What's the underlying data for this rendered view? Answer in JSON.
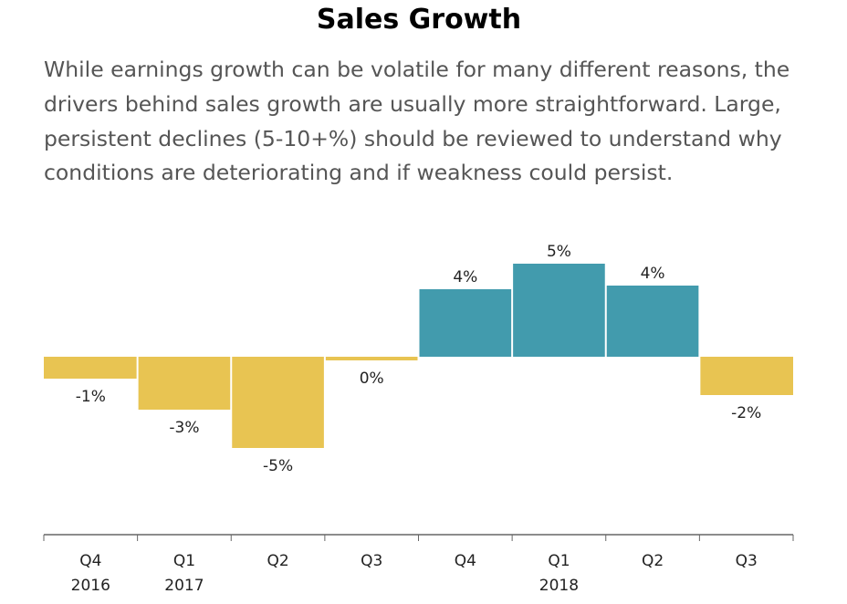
{
  "colors": {
    "positive": "#429bad",
    "negative": "#e8c452",
    "axis": "#666666",
    "label": "#222222",
    "title": "#000000",
    "description": "#555555"
  },
  "chart_data": {
    "type": "bar",
    "title": "Sales Growth",
    "subtitle": "While earnings growth can be volatile for many different reasons, the drivers behind sales growth are usually more straightforward. Large, persistent declines (5-10+%) should be reviewed to understand why conditions are deteriorating and if weakness could persist.",
    "categories": [
      "Q4 2016",
      "Q1 2017",
      "Q2 2017",
      "Q3 2017",
      "Q4 2017",
      "Q1 2018",
      "Q2 2018",
      "Q3 2018"
    ],
    "quarter_labels": [
      "Q4",
      "Q1",
      "Q2",
      "Q3",
      "Q4",
      "Q1",
      "Q2",
      "Q3"
    ],
    "year_labels": [
      "2016",
      "2017",
      "",
      "",
      "",
      "2018",
      "",
      ""
    ],
    "values": [
      -1.2,
      -2.9,
      -5.0,
      -0.2,
      3.7,
      5.1,
      3.9,
      -2.1
    ],
    "data_labels": [
      "-1%",
      "-3%",
      "-5%",
      "0%",
      "4%",
      "5%",
      "4%",
      "-2%"
    ],
    "ylim": [
      -10.5,
      5.5
    ],
    "xlabel": "",
    "ylabel": "",
    "grid": false
  }
}
